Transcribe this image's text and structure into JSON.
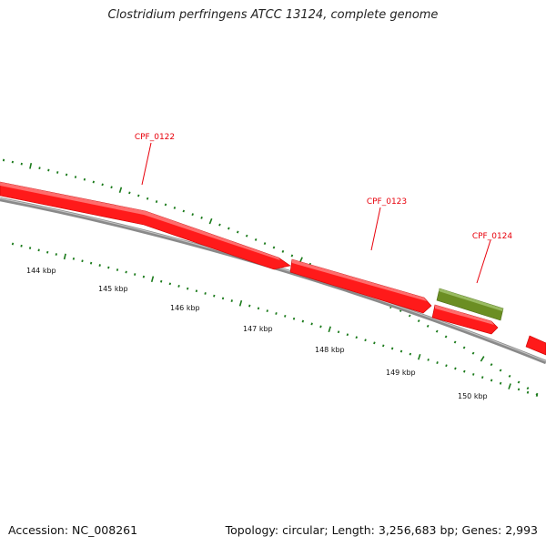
{
  "title": "Clostridium perfringens ATCC 13124, complete genome",
  "footer": {
    "accession": "Accession: NC_008261",
    "topology": "Topology: circular; Length: 3,256,683 bp; Genes: 2,993"
  },
  "colors": {
    "cds": "#ff1a1a",
    "other_feature": "#6b8e23",
    "backbone": "#777777",
    "ticks": "#1a7a1a",
    "gene_label": "#e8000b"
  },
  "scale_labels": [
    "144 kbp",
    "145 kbp",
    "146 kbp",
    "147 kbp",
    "148 kbp",
    "149 kbp",
    "150 kbp"
  ],
  "gene_labels": [
    "CPF_0122",
    "CPF_0123",
    "CPF_0124"
  ]
}
